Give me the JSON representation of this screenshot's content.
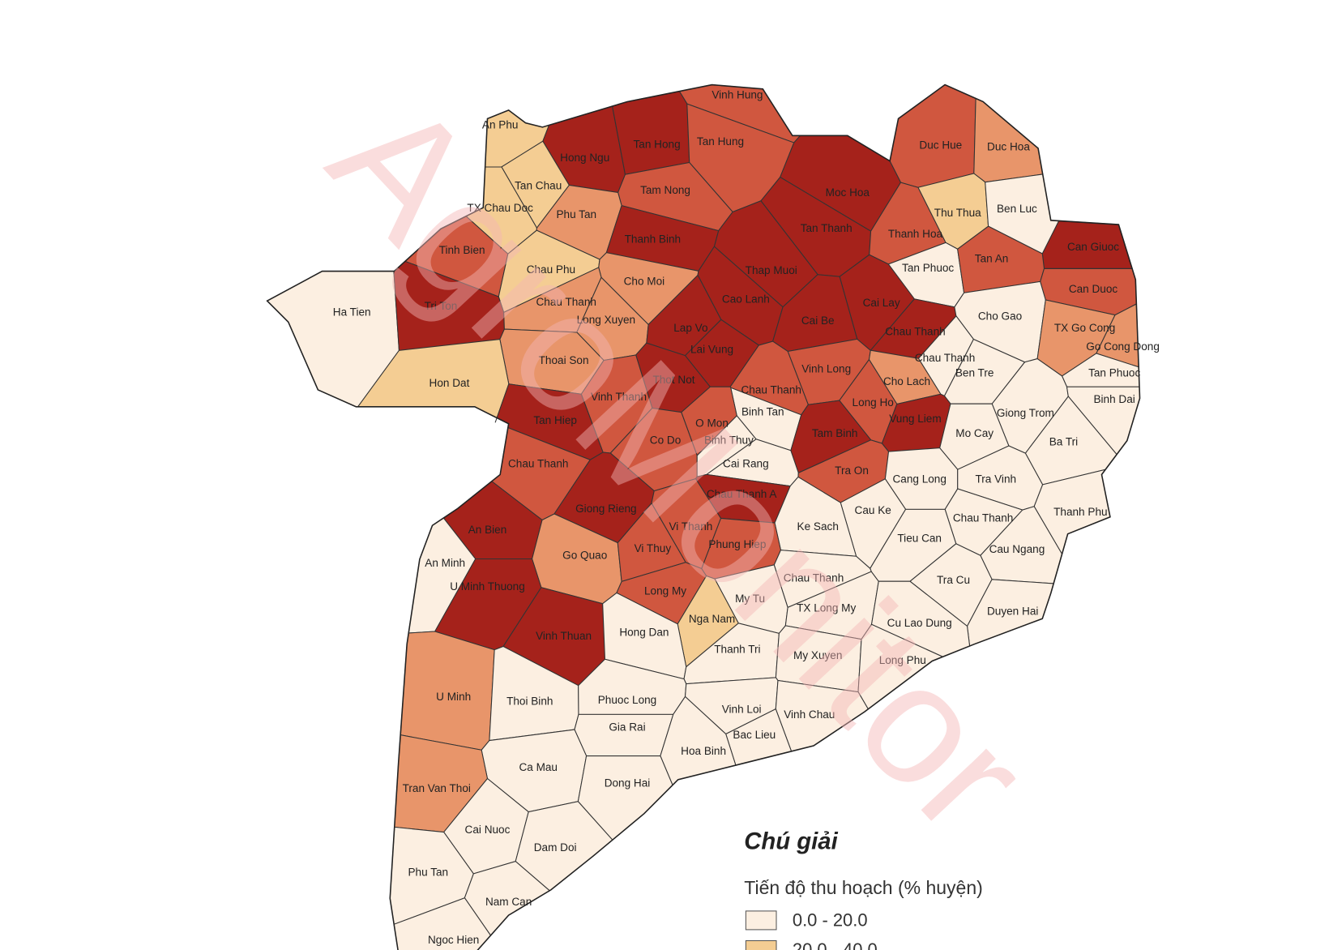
{
  "map": {
    "watermark": "AgroMonitor",
    "districts": [
      {
        "name": "Vinh Hung",
        "color": "#d0573f"
      },
      {
        "name": "An Phu",
        "color": "#f4cd93"
      },
      {
        "name": "Hong Ngu",
        "color": "#a5221b"
      },
      {
        "name": "Tan Hong",
        "color": "#a5221b"
      },
      {
        "name": "Tan Hung",
        "color": "#d0573f"
      },
      {
        "name": "Duc Hue",
        "color": "#d0573f"
      },
      {
        "name": "Duc Hoa",
        "color": "#e8956a"
      },
      {
        "name": "Tan Chau",
        "color": "#f4cd93"
      },
      {
        "name": "Tam Nong",
        "color": "#d0573f"
      },
      {
        "name": "TX Chau Doc",
        "color": "#f4cd93"
      },
      {
        "name": "Phu Tan",
        "color": "#e8956a"
      },
      {
        "name": "Moc Hoa",
        "color": "#a5221b"
      },
      {
        "name": "Thu Thua",
        "color": "#f4cd93"
      },
      {
        "name": "Ben Luc",
        "color": "#fcefe1"
      },
      {
        "name": "Tinh Bien",
        "color": "#d0573f"
      },
      {
        "name": "Thanh Binh",
        "color": "#a5221b"
      },
      {
        "name": "Tan Thanh",
        "color": "#a5221b"
      },
      {
        "name": "Thanh Hoa",
        "color": "#d0573f"
      },
      {
        "name": "Can Giuoc",
        "color": "#a5221b"
      },
      {
        "name": "Chau Phu",
        "color": "#f4cd93"
      },
      {
        "name": "Thap Muoi",
        "color": "#a5221b"
      },
      {
        "name": "Tan Phuoc",
        "color": "#fcefe1"
      },
      {
        "name": "Tan An",
        "color": "#d0573f"
      },
      {
        "name": "Cho Moi",
        "color": "#e8956a"
      },
      {
        "name": "Can Duoc",
        "color": "#d0573f"
      },
      {
        "name": "Ha Tien",
        "color": "#fcefe1"
      },
      {
        "name": "Tri Ton",
        "color": "#a5221b"
      },
      {
        "name": "Chau Thanh",
        "color": "#e8956a"
      },
      {
        "name": "Cao Lanh",
        "color": "#a5221b"
      },
      {
        "name": "Cai Lay",
        "color": "#a5221b"
      },
      {
        "name": "Long Xuyen",
        "color": "#e8956a"
      },
      {
        "name": "Lap Vo",
        "color": "#a5221b"
      },
      {
        "name": "Cai Be",
        "color": "#a5221b"
      },
      {
        "name": "Chau Thanh",
        "color": "#a5221b"
      },
      {
        "name": "Cho Gao",
        "color": "#fcefe1"
      },
      {
        "name": "TX Go Cong",
        "color": "#e8956a"
      },
      {
        "name": "Go Cong Dong",
        "color": "#e8956a"
      },
      {
        "name": "Lai Vung",
        "color": "#a5221b"
      },
      {
        "name": "Thoai Son",
        "color": "#e8956a"
      },
      {
        "name": "Chau Thanh",
        "color": "#fcefe1"
      },
      {
        "name": "Vinh Long",
        "color": "#d0573f"
      },
      {
        "name": "Ben Tre",
        "color": "#fcefe1"
      },
      {
        "name": "Tan Phuoc",
        "color": "#fcefe1"
      },
      {
        "name": "Cho Lach",
        "color": "#e8956a"
      },
      {
        "name": "Hon Dat",
        "color": "#f4cd93"
      },
      {
        "name": "Thot Not",
        "color": "#a5221b"
      },
      {
        "name": "Chau Thanh",
        "color": "#d0573f"
      },
      {
        "name": "Vinh Thanh",
        "color": "#d0573f"
      },
      {
        "name": "Long Ho",
        "color": "#d0573f"
      },
      {
        "name": "Binh Tan",
        "color": "#fcefe1"
      },
      {
        "name": "Giong Trom",
        "color": "#fcefe1"
      },
      {
        "name": "Binh Dai",
        "color": "#fcefe1"
      },
      {
        "name": "Vung Liem",
        "color": "#a5221b"
      },
      {
        "name": "Tan Hiep",
        "color": "#a5221b"
      },
      {
        "name": "O Mon",
        "color": "#d0573f"
      },
      {
        "name": "Co Do",
        "color": "#d0573f"
      },
      {
        "name": "Tam Binh",
        "color": "#a5221b"
      },
      {
        "name": "Mo Cay",
        "color": "#fcefe1"
      },
      {
        "name": "Ba Tri",
        "color": "#fcefe1"
      },
      {
        "name": "Binh Thuy",
        "color": "#fcefe1"
      },
      {
        "name": "Chau Thanh",
        "color": "#d0573f"
      },
      {
        "name": "Cai Rang",
        "color": "#fcefe1"
      },
      {
        "name": "Tra On",
        "color": "#d0573f"
      },
      {
        "name": "Cang Long",
        "color": "#fcefe1"
      },
      {
        "name": "Tra Vinh",
        "color": "#fcefe1"
      },
      {
        "name": "Chau Thanh A",
        "color": "#a5221b"
      },
      {
        "name": "Giong Rieng",
        "color": "#a5221b"
      },
      {
        "name": "Cau Ke",
        "color": "#fcefe1"
      },
      {
        "name": "Chau Thanh",
        "color": "#fcefe1"
      },
      {
        "name": "Thanh Phu",
        "color": "#fcefe1"
      },
      {
        "name": "An Bien",
        "color": "#a5221b"
      },
      {
        "name": "Vi Thanh",
        "color": "#d0573f"
      },
      {
        "name": "Ke Sach",
        "color": "#fcefe1"
      },
      {
        "name": "Phung Hiep",
        "color": "#d0573f"
      },
      {
        "name": "Tieu Can",
        "color": "#fcefe1"
      },
      {
        "name": "Cau Ngang",
        "color": "#fcefe1"
      },
      {
        "name": "Go Quao",
        "color": "#e8956a"
      },
      {
        "name": "Vi Thuy",
        "color": "#d0573f"
      },
      {
        "name": "An Minh",
        "color": "#fcefe1"
      },
      {
        "name": "Tra Cu",
        "color": "#fcefe1"
      },
      {
        "name": "U Minh Thuong",
        "color": "#a5221b"
      },
      {
        "name": "Chau Thanh",
        "color": "#fcefe1"
      },
      {
        "name": "Long My",
        "color": "#d0573f"
      },
      {
        "name": "My Tu",
        "color": "#fcefe1"
      },
      {
        "name": "TX Long My",
        "color": "#fcefe1"
      },
      {
        "name": "Duyen Hai",
        "color": "#fcefe1"
      },
      {
        "name": "Nga Nam",
        "color": "#f4cd93"
      },
      {
        "name": "Cu Lao Dung",
        "color": "#fcefe1"
      },
      {
        "name": "Vinh Thuan",
        "color": "#a5221b"
      },
      {
        "name": "Hong Dan",
        "color": "#fcefe1"
      },
      {
        "name": "Thanh Tri",
        "color": "#fcefe1"
      },
      {
        "name": "My Xuyen",
        "color": "#fcefe1"
      },
      {
        "name": "Long Phu",
        "color": "#fcefe1"
      },
      {
        "name": "U Minh",
        "color": "#e8956a"
      },
      {
        "name": "Thoi Binh",
        "color": "#fcefe1"
      },
      {
        "name": "Phuoc Long",
        "color": "#fcefe1"
      },
      {
        "name": "Vinh Loi",
        "color": "#fcefe1"
      },
      {
        "name": "Vinh Chau",
        "color": "#fcefe1"
      },
      {
        "name": "Gia Rai",
        "color": "#fcefe1"
      },
      {
        "name": "Bac Lieu",
        "color": "#fcefe1"
      },
      {
        "name": "Hoa Binh",
        "color": "#fcefe1"
      },
      {
        "name": "Ca Mau",
        "color": "#fcefe1"
      },
      {
        "name": "Tran Van Thoi",
        "color": "#e8956a"
      },
      {
        "name": "Dong Hai",
        "color": "#fcefe1"
      },
      {
        "name": "Cai Nuoc",
        "color": "#fcefe1"
      },
      {
        "name": "Dam Doi",
        "color": "#fcefe1"
      },
      {
        "name": "Phu Tan",
        "color": "#fcefe1"
      },
      {
        "name": "Nam Can",
        "color": "#fcefe1"
      },
      {
        "name": "Ngoc Hien",
        "color": "#fcefe1"
      }
    ],
    "legend": {
      "title": "Chú giải",
      "subtitle": "Tiến độ thu hoạch (% huyện)",
      "items": [
        {
          "label": "0.0 - 20.0",
          "color": "#fcefe1"
        },
        {
          "label": "20.0 - 40.0",
          "color": "#f4cd93"
        }
      ]
    }
  }
}
